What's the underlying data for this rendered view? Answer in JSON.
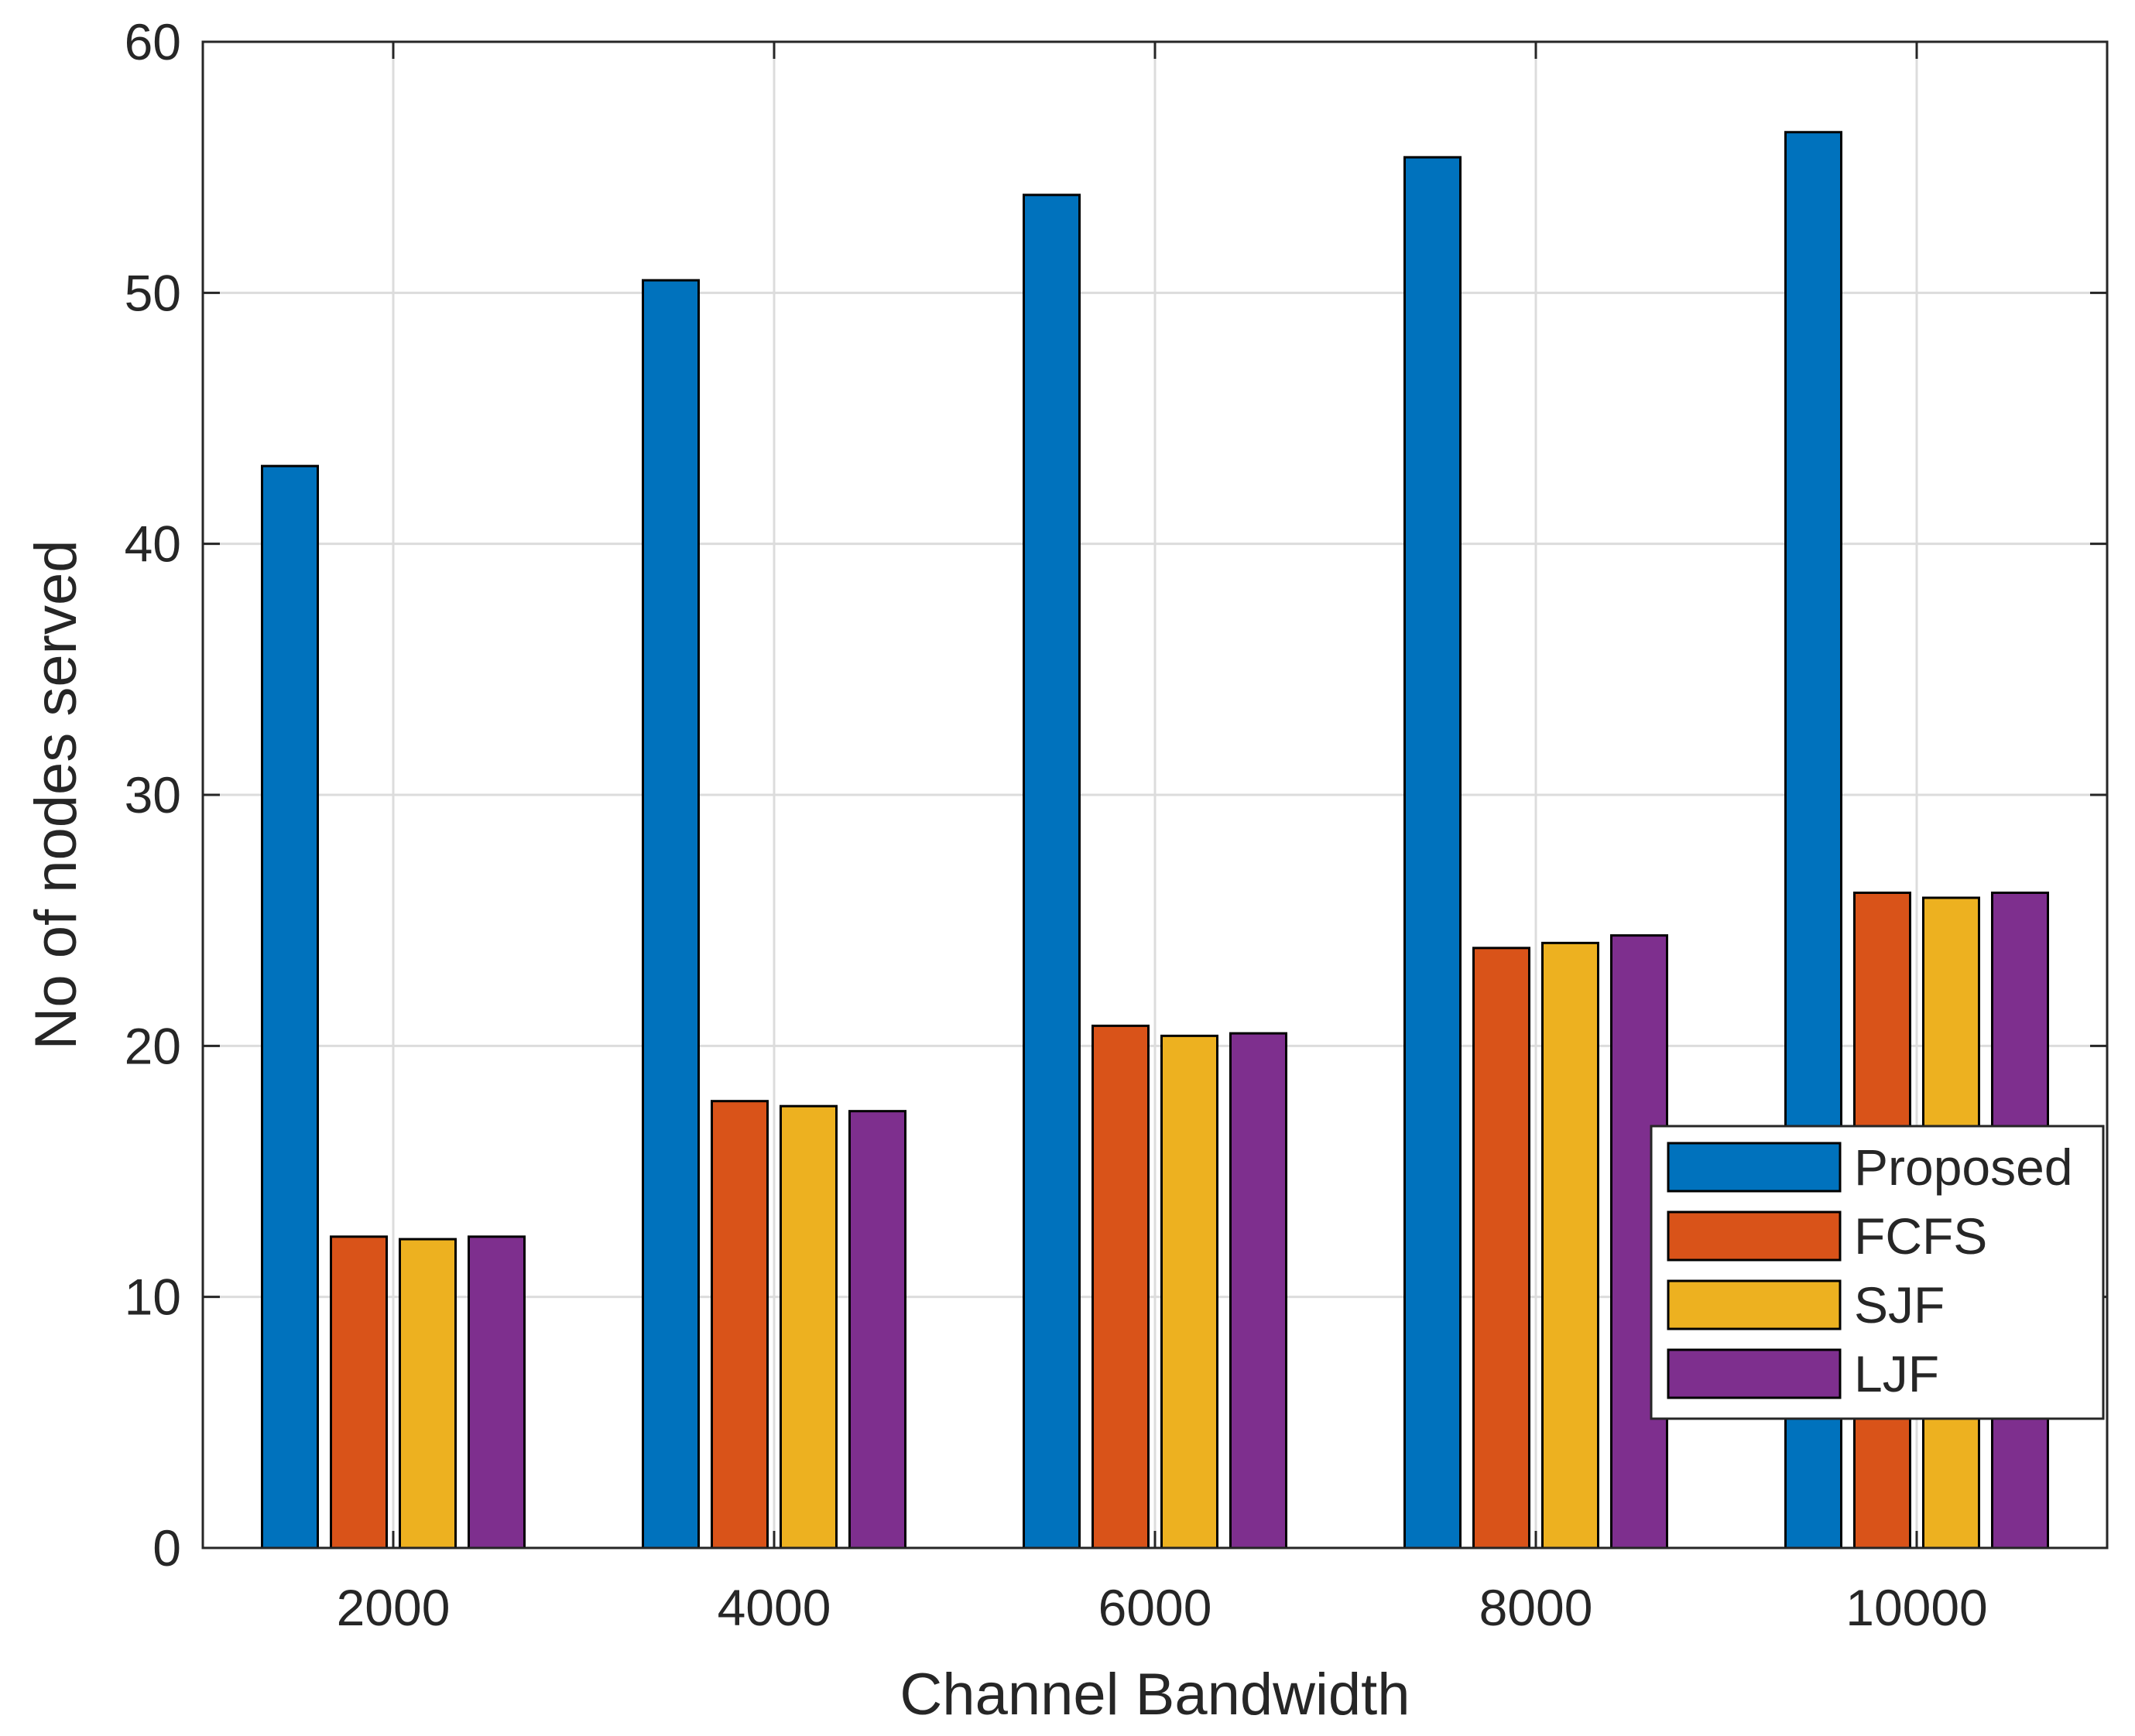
{
  "chart_data": {
    "type": "bar",
    "title": "",
    "xlabel": "Channel Bandwidth",
    "ylabel": "No of nodes served",
    "categories": [
      "2000",
      "4000",
      "6000",
      "8000",
      "10000"
    ],
    "ylim": [
      0,
      60
    ],
    "yticks": [
      "0",
      "10",
      "20",
      "30",
      "40",
      "50",
      "60"
    ],
    "grid": true,
    "legend_position": "lower-right",
    "series": [
      {
        "name": "Proposed",
        "color": "#0072BD",
        "values": [
          43.1,
          50.5,
          53.9,
          55.4,
          56.4
        ]
      },
      {
        "name": "FCFS",
        "color": "#D95319",
        "values": [
          12.4,
          17.8,
          20.8,
          23.9,
          26.1
        ]
      },
      {
        "name": "SJF",
        "color": "#EDB120",
        "values": [
          12.3,
          17.6,
          20.4,
          24.1,
          25.9
        ]
      },
      {
        "name": "LJF",
        "color": "#7E2F8E",
        "values": [
          12.4,
          17.4,
          20.5,
          24.4,
          26.1
        ]
      }
    ]
  }
}
